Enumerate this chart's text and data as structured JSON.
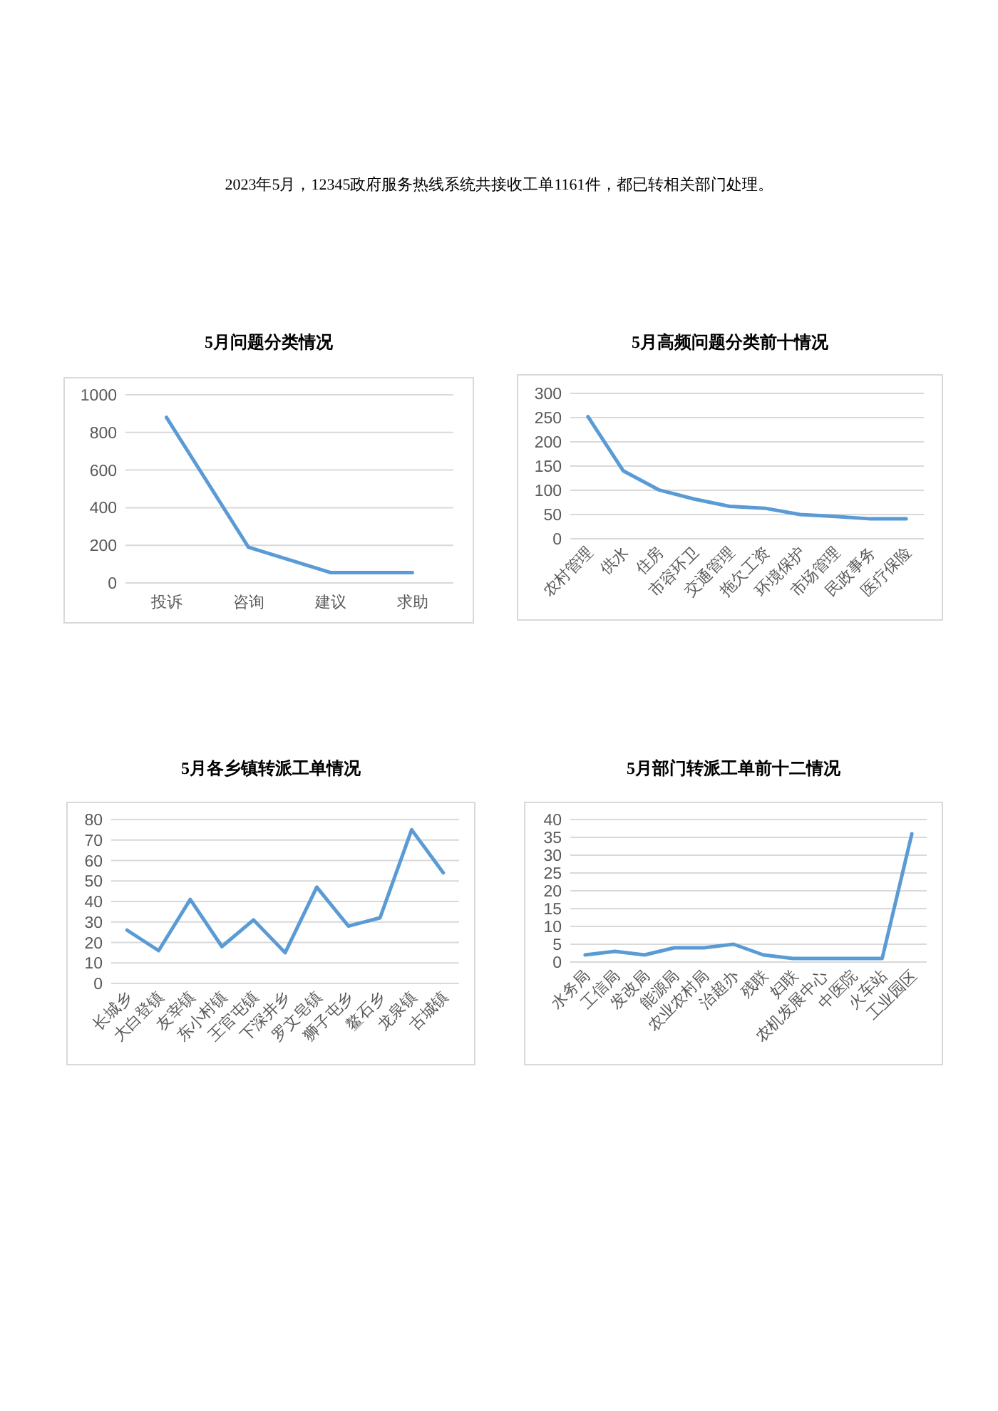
{
  "chart_data": [
    {
      "type": "other",
      "annotations": [
        "2023年5月，12345政府服务热线系统共接收工单1161件，都已转相关部门处理。"
      ]
    },
    {
      "type": "line",
      "title": "5月问题分类情况",
      "categories": [
        "投诉",
        "咨询",
        "建议",
        "求助"
      ],
      "series": [
        {
          "color": "#5b9bd5",
          "values": [
            880,
            190,
            55,
            55
          ]
        }
      ],
      "ylim": [
        0,
        1000
      ],
      "yticks": [
        0,
        200,
        400,
        600,
        800,
        1000
      ],
      "grid": "y"
    },
    {
      "type": "line",
      "title": "5月高频问题分类前十情况",
      "categories": [
        "农村管理",
        "供水",
        "住房",
        "市容环卫",
        "交通管理",
        "拖欠工资",
        "环境保护",
        "市场管理",
        "民政事务",
        "医疗保险"
      ],
      "series": [
        {
          "color": "#5b9bd5",
          "values": [
            252,
            140,
            101,
            82,
            67,
            63,
            50,
            46,
            41,
            41
          ]
        }
      ],
      "ylim": [
        0,
        300
      ],
      "yticks": [
        0,
        50,
        100,
        150,
        200,
        250,
        300
      ],
      "grid": "y"
    },
    {
      "type": "line",
      "title": "5月各乡镇转派工单情况",
      "categories": [
        "长城乡",
        "大白登镇",
        "友宰镇",
        "东小村镇",
        "王官屯镇",
        "下深井乡",
        "罗文皂镇",
        "狮子屯乡",
        "鳌石乡",
        "龙泉镇",
        "古城镇"
      ],
      "series": [
        {
          "color": "#5b9bd5",
          "values": [
            26,
            16,
            41,
            18,
            31,
            15,
            47,
            28,
            32,
            75,
            54
          ]
        }
      ],
      "ylim": [
        0,
        80
      ],
      "yticks": [
        0,
        10,
        20,
        30,
        40,
        50,
        60,
        70,
        80
      ],
      "grid": "y"
    },
    {
      "type": "line",
      "title": "5月部门转派工单前十二情况",
      "categories": [
        "水务局",
        "工信局",
        "发改局",
        "能源局",
        "农业农村局",
        "治超办",
        "残联",
        "妇联",
        "农机发展中心",
        "中医院",
        "火车站",
        "工业园区"
      ],
      "series": [
        {
          "color": "#5b9bd5",
          "values": [
            2,
            3,
            2,
            4,
            4,
            5,
            2,
            1,
            1,
            1,
            1,
            36
          ]
        }
      ],
      "ylim": [
        0,
        40
      ],
      "yticks": [
        0,
        5,
        10,
        15,
        20,
        25,
        30,
        35,
        40
      ],
      "grid": "y"
    }
  ]
}
